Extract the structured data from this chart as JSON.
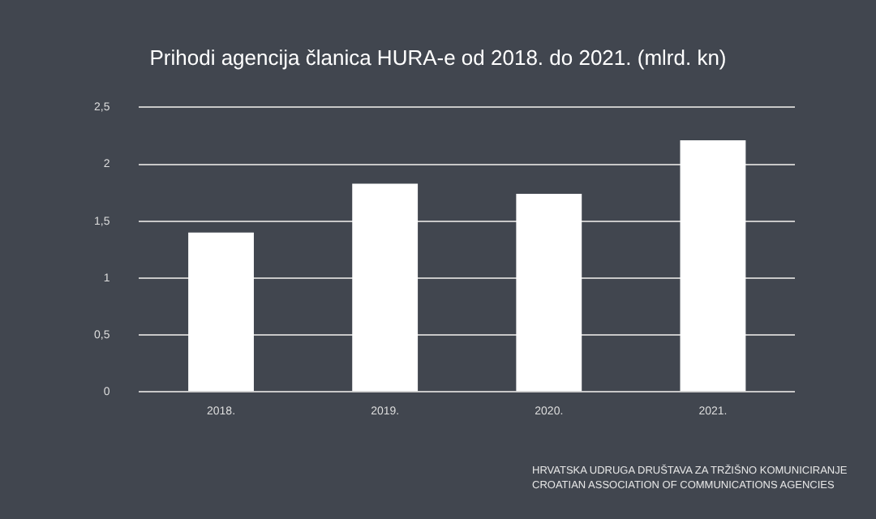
{
  "chart_data": {
    "type": "bar",
    "title": "Prihodi agencija članica HURA-e od 2018. do 2021. (mlrd. kn)",
    "categories": [
      "2018.",
      "2019.",
      "2020.",
      "2021."
    ],
    "values": [
      1.4,
      1.83,
      1.74,
      2.21
    ],
    "color": "#ffffff",
    "ylim": [
      0,
      2.5
    ],
    "yticks": [
      0,
      {
        "value": 0.5,
        "label": "0,5"
      },
      1,
      {
        "value": 1.5,
        "label": "1,5"
      },
      2,
      {
        "value": 2.5,
        "label": "2,5"
      }
    ],
    "grid": "y",
    "legend": false,
    "annotations": [
      "HRVATSKA UDRUGA DRUŠTAVA ZA TRŽIŠNO KOMUNICIRANJE",
      "CROATIAN ASSOCIATION OF COMMUNICATIONS AGENCIES"
    ]
  }
}
